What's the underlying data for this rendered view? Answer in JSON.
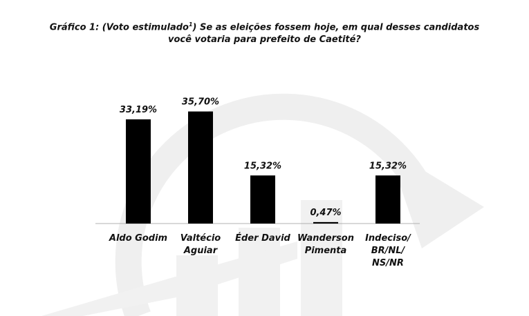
{
  "chart_data": {
    "type": "bar",
    "title_main": "Gráfico 1: (Voto estimulado",
    "title_sup": "1",
    "title_rest": ") Se as eleições fossem hoje, em qual desses candidatos",
    "title_line2": "você votaria para prefeito de Caetité?",
    "xlabel": "",
    "ylabel": "",
    "ylim": [
      0,
      40
    ],
    "grid": false,
    "legend": "none",
    "categories": [
      [
        "Aldo Godim"
      ],
      [
        "Valtécio",
        "Aguiar"
      ],
      [
        "Éder David"
      ],
      [
        "Wanderson",
        "Pimenta"
      ],
      [
        "Indeciso/",
        "BR/NL/",
        "NS/NR"
      ]
    ],
    "values": [
      33.19,
      35.7,
      15.32,
      0.47,
      15.32
    ],
    "data_labels": [
      "33,19%",
      "35,70%",
      "15,32%",
      "0,47%",
      "15,32%"
    ],
    "bar_color": "#000000",
    "axis_color": "#b0b0b0",
    "watermark_color": "#eeeeee"
  }
}
